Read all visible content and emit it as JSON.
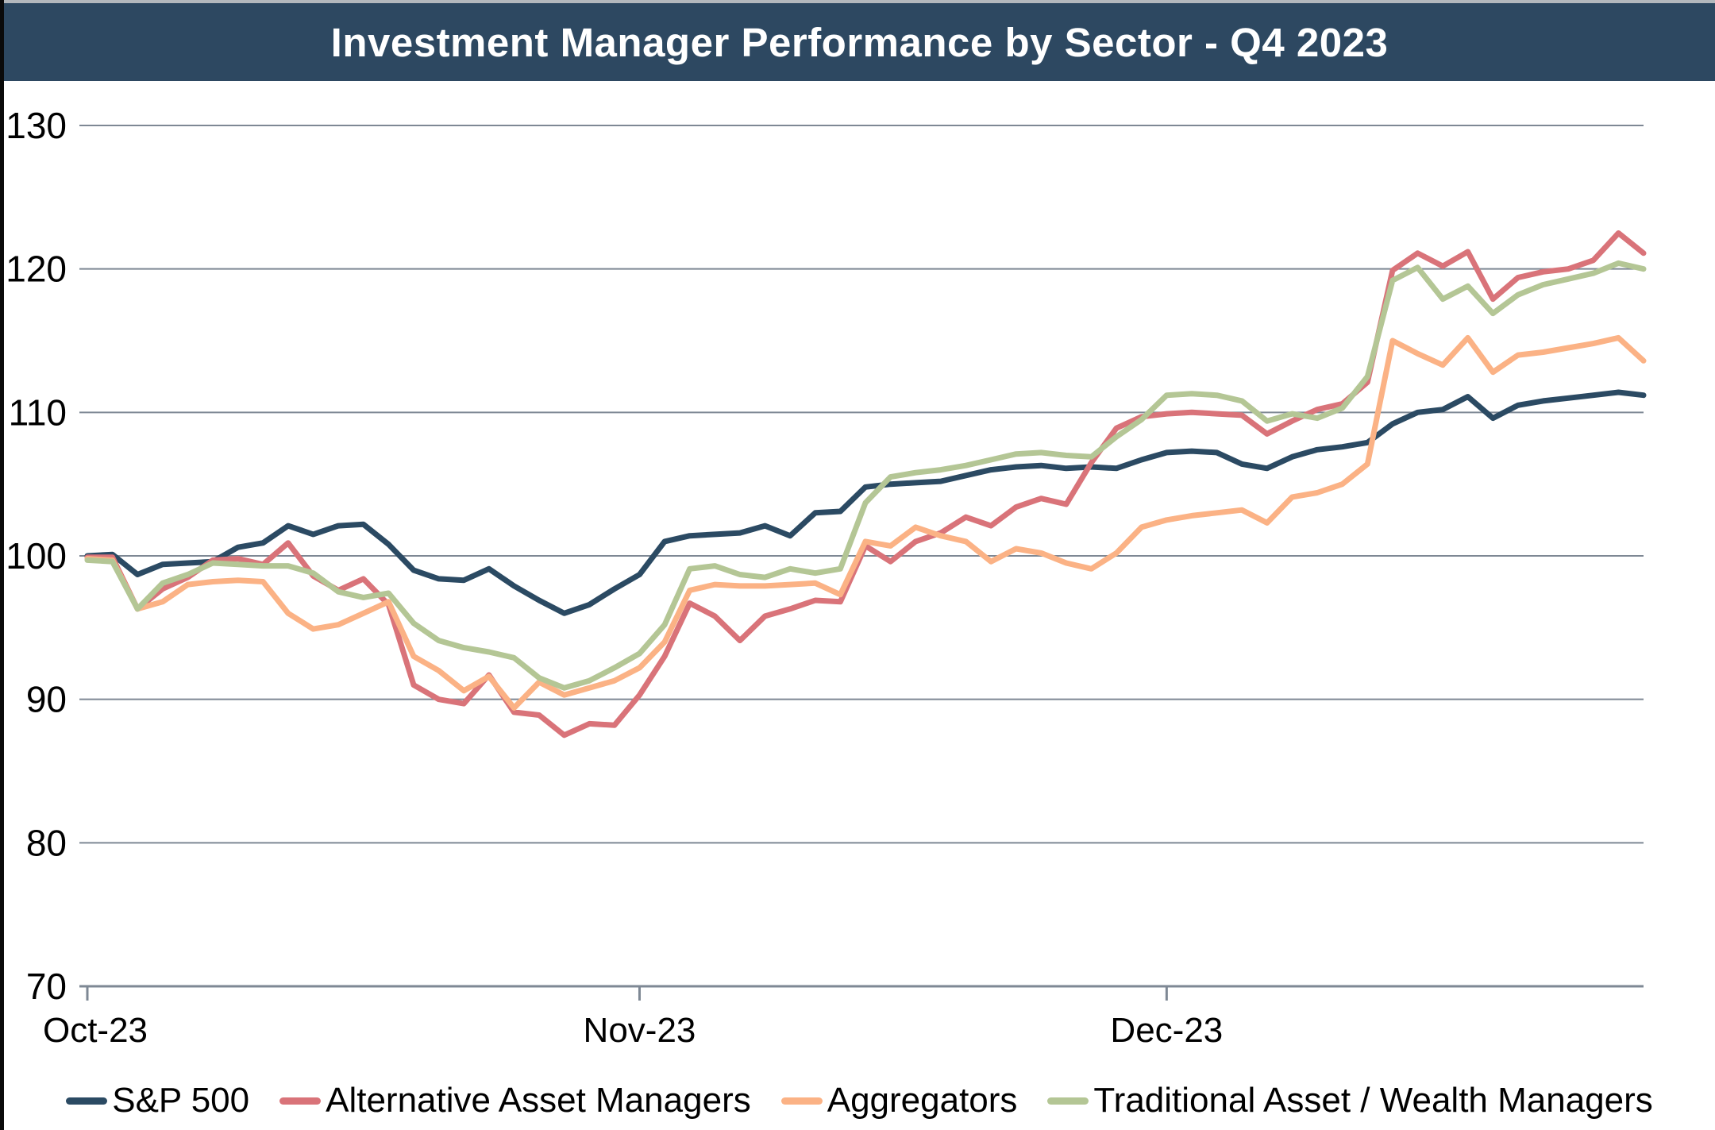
{
  "title": "Investment Manager Performance by Sector - Q4 2023",
  "colors": {
    "title_bar_bg": "#2d4861",
    "title_text": "#ffffff",
    "gridline": "#7e8894",
    "axis_line": "#7e8894",
    "tick_label": "#000000",
    "page_bg": "#ffffff"
  },
  "chart_data": {
    "type": "line",
    "title": "Investment Manager Performance by Sector - Q4 2023",
    "xlabel": "",
    "ylabel": "",
    "ylim": [
      70,
      130
    ],
    "y_ticks": [
      70,
      80,
      90,
      100,
      110,
      120,
      130
    ],
    "grid": "horizontal",
    "legend_position": "bottom",
    "x_tick_labels": [
      "Oct-23",
      "Nov-23",
      "Dec-23"
    ],
    "x_tick_indices": [
      0,
      22,
      43
    ],
    "x": [
      "Oct-02",
      "Oct-03",
      "Oct-04",
      "Oct-05",
      "Oct-06",
      "Oct-09",
      "Oct-10",
      "Oct-11",
      "Oct-12",
      "Oct-13",
      "Oct-16",
      "Oct-17",
      "Oct-18",
      "Oct-19",
      "Oct-20",
      "Oct-23",
      "Oct-24",
      "Oct-25",
      "Oct-26",
      "Oct-27",
      "Oct-30",
      "Oct-31",
      "Nov-01",
      "Nov-02",
      "Nov-03",
      "Nov-06",
      "Nov-07",
      "Nov-08",
      "Nov-09",
      "Nov-10",
      "Nov-13",
      "Nov-14",
      "Nov-15",
      "Nov-16",
      "Nov-17",
      "Nov-20",
      "Nov-21",
      "Nov-22",
      "Nov-24",
      "Nov-27",
      "Nov-28",
      "Nov-29",
      "Nov-30",
      "Dec-01",
      "Dec-04",
      "Dec-05",
      "Dec-06",
      "Dec-07",
      "Dec-08",
      "Dec-11",
      "Dec-12",
      "Dec-13",
      "Dec-14",
      "Dec-15",
      "Dec-18",
      "Dec-19",
      "Dec-20",
      "Dec-21",
      "Dec-22",
      "Dec-26",
      "Dec-27",
      "Dec-28",
      "Dec-29"
    ],
    "series": [
      {
        "name": "S&P 500",
        "color": "#2b4a63",
        "values": [
          100.0,
          100.1,
          98.7,
          99.4,
          99.5,
          99.6,
          100.6,
          100.9,
          102.1,
          101.5,
          102.1,
          102.2,
          100.8,
          99.0,
          98.4,
          98.3,
          99.1,
          97.9,
          96.9,
          96.0,
          96.6,
          97.7,
          98.7,
          101.0,
          101.4,
          101.5,
          101.6,
          102.1,
          101.4,
          103.0,
          103.1,
          104.8,
          105.0,
          105.1,
          105.2,
          105.6,
          106.0,
          106.2,
          106.3,
          106.1,
          106.2,
          106.1,
          106.7,
          107.2,
          107.3,
          107.2,
          106.4,
          106.1,
          106.9,
          107.4,
          107.6,
          107.9,
          109.2,
          110.0,
          110.2,
          111.1,
          109.6,
          110.5,
          110.8,
          111.0,
          111.2,
          111.4,
          111.2
        ]
      },
      {
        "name": "Alternative Asset Managers",
        "color": "#d97379",
        "values": [
          99.9,
          99.9,
          96.3,
          97.7,
          98.5,
          99.7,
          99.8,
          99.4,
          100.9,
          98.6,
          97.6,
          98.4,
          96.6,
          91.0,
          90.0,
          89.7,
          91.7,
          89.1,
          88.9,
          87.5,
          88.3,
          88.2,
          90.3,
          93.0,
          96.7,
          95.8,
          94.1,
          95.8,
          96.3,
          96.9,
          96.8,
          100.7,
          99.6,
          101.0,
          101.6,
          102.7,
          102.1,
          103.4,
          104.0,
          103.6,
          106.5,
          108.9,
          109.7,
          109.9,
          110.0,
          109.9,
          109.8,
          108.5,
          109.4,
          110.2,
          110.6,
          112.1,
          119.9,
          121.1,
          120.2,
          121.2,
          117.9,
          119.4,
          119.8,
          120.0,
          120.6,
          122.5,
          121.1
        ]
      },
      {
        "name": "Aggregators",
        "color": "#fbb285",
        "values": [
          99.8,
          99.7,
          96.3,
          96.8,
          98.0,
          98.2,
          98.3,
          98.2,
          96.0,
          94.9,
          95.2,
          96.0,
          96.8,
          93.0,
          92.0,
          90.6,
          91.6,
          89.4,
          91.2,
          90.3,
          90.8,
          91.3,
          92.2,
          94.0,
          97.6,
          98.0,
          97.9,
          97.9,
          98.0,
          98.1,
          97.3,
          101.0,
          100.7,
          102.0,
          101.4,
          101.0,
          99.6,
          100.5,
          100.2,
          99.5,
          99.1,
          100.2,
          102.0,
          102.5,
          102.8,
          103.0,
          103.2,
          102.3,
          104.1,
          104.4,
          105.0,
          106.4,
          115.0,
          114.1,
          113.3,
          115.2,
          112.8,
          114.0,
          114.2,
          114.5,
          114.8,
          115.2,
          113.6
        ]
      },
      {
        "name": "Traditional Asset / Wealth Managers",
        "color": "#b4c695",
        "values": [
          99.7,
          99.6,
          96.3,
          98.1,
          98.7,
          99.5,
          99.4,
          99.3,
          99.3,
          98.8,
          97.5,
          97.1,
          97.4,
          95.3,
          94.1,
          93.6,
          93.3,
          92.9,
          91.5,
          90.8,
          91.3,
          92.2,
          93.2,
          95.2,
          99.1,
          99.3,
          98.7,
          98.5,
          99.1,
          98.8,
          99.1,
          103.7,
          105.5,
          105.8,
          106.0,
          106.3,
          106.7,
          107.1,
          107.2,
          107.0,
          106.9,
          108.3,
          109.5,
          111.2,
          111.3,
          111.2,
          110.8,
          109.4,
          109.9,
          109.6,
          110.3,
          112.5,
          119.2,
          120.1,
          117.9,
          118.8,
          116.9,
          118.2,
          118.9,
          119.3,
          119.7,
          120.4,
          120.0
        ]
      }
    ]
  }
}
